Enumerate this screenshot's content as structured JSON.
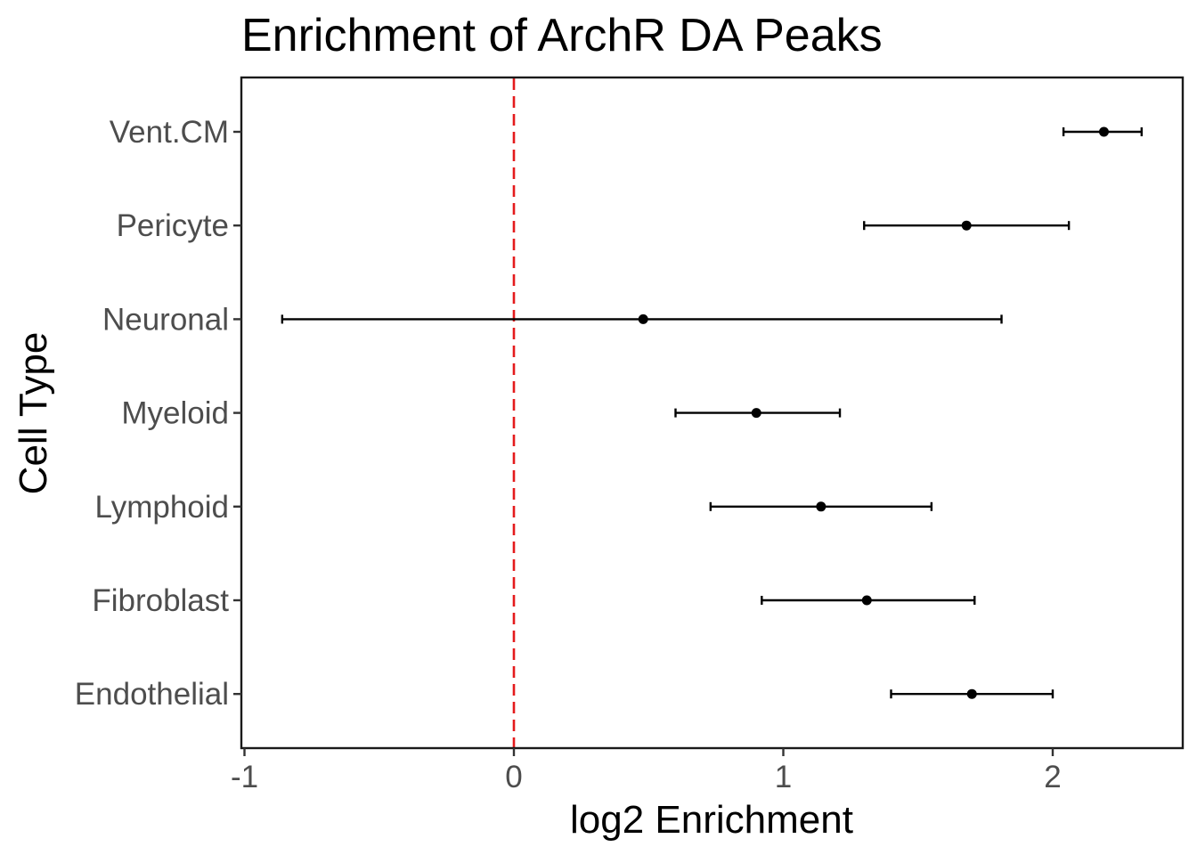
{
  "chart_data": {
    "type": "scatter",
    "subtype": "forest-plot",
    "title": "Enrichment of ArchR DA Peaks",
    "xlabel": "log2 Enrichment",
    "ylabel": "Cell Type",
    "xlim": [
      -1,
      2.5
    ],
    "xticks": [
      -1,
      0,
      1,
      2
    ],
    "xtick_labels": [
      "-1",
      "0",
      "1",
      "2"
    ],
    "grid": false,
    "reference_line": {
      "x": 0,
      "style": "dashed",
      "color": "#e41a1c"
    },
    "categories": [
      "Vent.CM",
      "Pericyte",
      "Neuronal",
      "Myeloid",
      "Lymphoid",
      "Fibroblast",
      "Endothelial"
    ],
    "series": [
      {
        "estimate": [
          2.19,
          1.68,
          0.48,
          0.9,
          1.14,
          1.31,
          1.7
        ],
        "lower": [
          2.04,
          1.3,
          -0.86,
          0.6,
          0.73,
          0.92,
          1.4
        ],
        "upper": [
          2.33,
          2.06,
          1.81,
          1.21,
          1.55,
          1.71,
          2.0
        ]
      }
    ],
    "colors": {
      "point": "#000000",
      "errorbar": "#000000",
      "reference": "#e41a1c",
      "axis_text": "#4d4d4d"
    }
  }
}
